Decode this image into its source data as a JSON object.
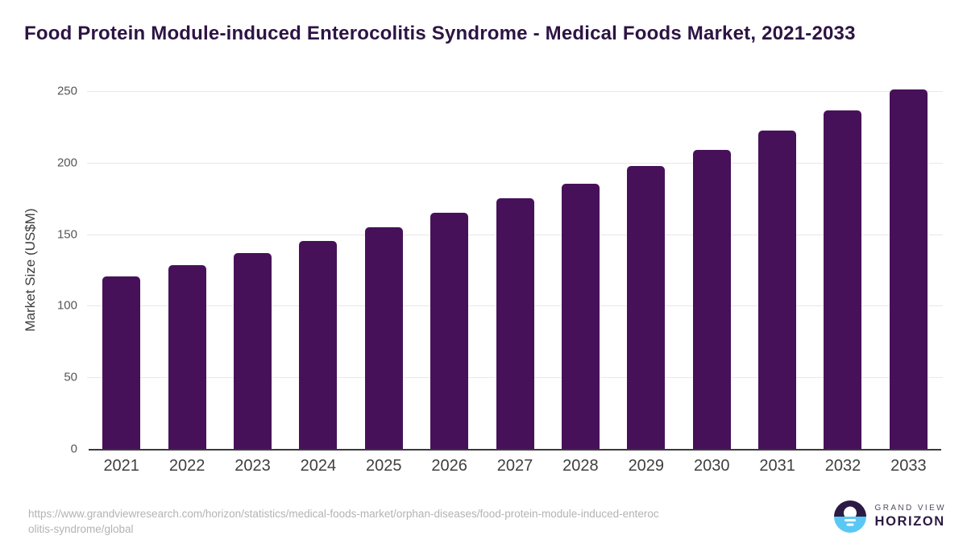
{
  "chart_data": {
    "type": "bar",
    "title": "Food Protein Module-induced Enterocolitis Syndrome - Medical Foods Market, 2021-2033",
    "categories": [
      "2021",
      "2022",
      "2023",
      "2024",
      "2025",
      "2026",
      "2027",
      "2028",
      "2029",
      "2030",
      "2031",
      "2032",
      "2033"
    ],
    "values": [
      120.5,
      128.5,
      137,
      145.5,
      155,
      165,
      175,
      185.5,
      197.5,
      209,
      222.5,
      236.5,
      251
    ],
    "xlabel": "",
    "ylabel": "Market Size (US$M)",
    "ylim": [
      0,
      250
    ],
    "yticks": [
      0,
      50,
      100,
      150,
      200,
      250
    ],
    "grid": true,
    "legend_position": "none",
    "bar_color": "#471159"
  },
  "footer": {
    "source_url_lines": [
      "https://www.grandviewresearch.com/horizon/statistics/medical-foods-market/orphan-diseases/food-protein-module-induced-enteroc",
      "olitis-syndrome/global"
    ],
    "logo": {
      "brand_top": "GRAND VIEW",
      "brand_bottom": "HORIZON"
    }
  },
  "colors": {
    "bar": "#471159",
    "title_text": "#2d1444",
    "y_tick_text": "#565656",
    "x_tick_text": "#3f3f3f",
    "gridline": "#e8e8e8",
    "baseline": "#3b3b3b",
    "source_text": "#b3b3b3",
    "logo_dark_purple": "#2b1a43",
    "logo_light_blue": "#5ac8f5"
  }
}
